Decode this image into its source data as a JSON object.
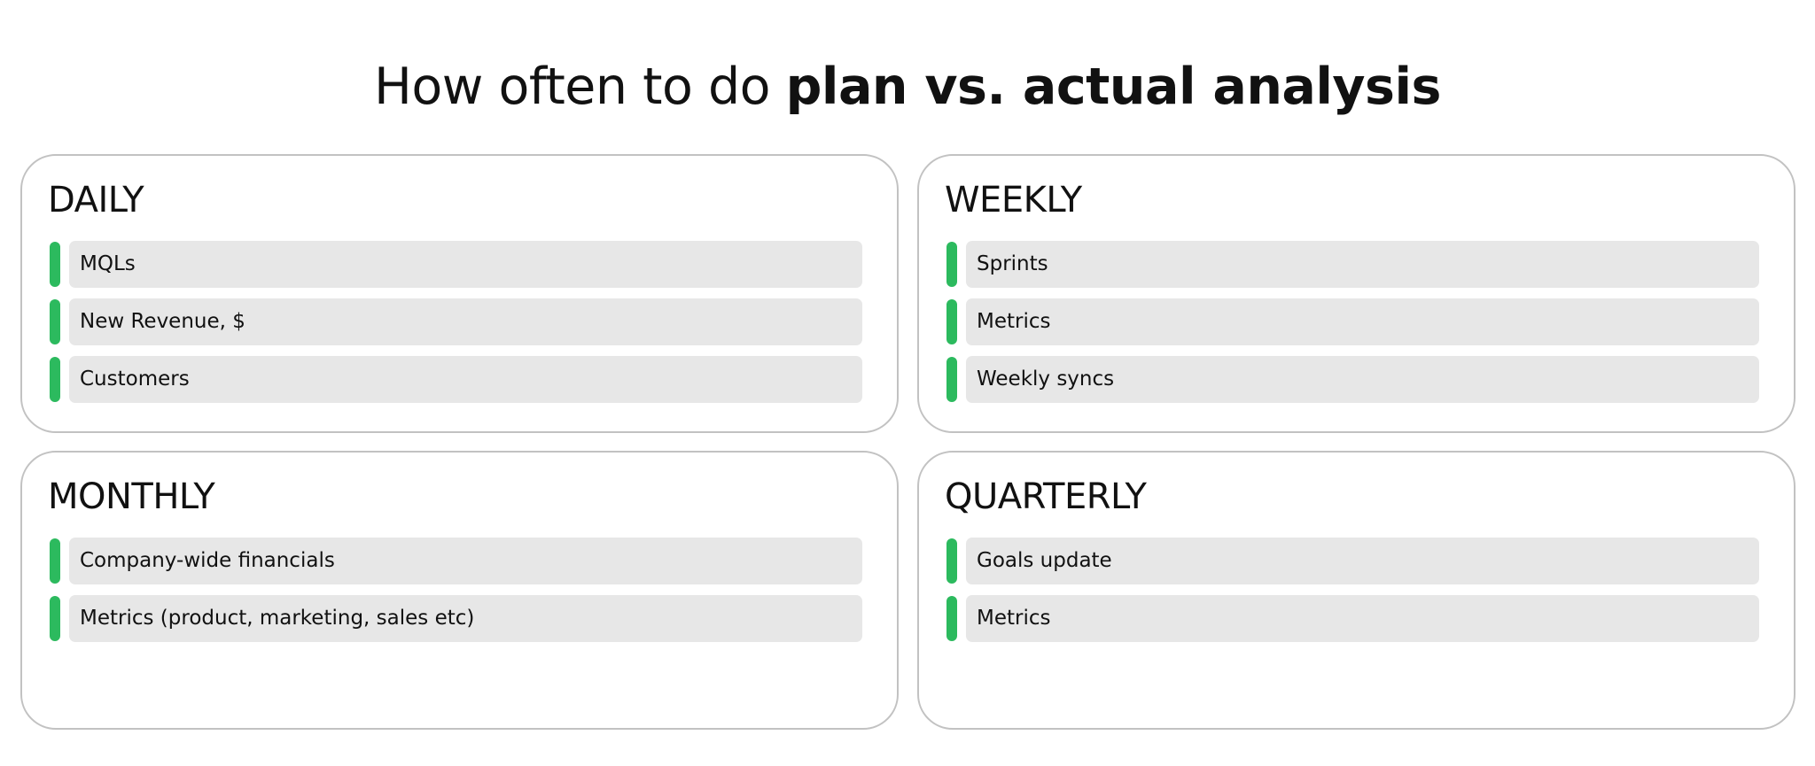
{
  "title": {
    "prefix": "How often to do ",
    "emphasis": "plan vs. actual analysis"
  },
  "colors": {
    "accent_bar": "#2cba5e",
    "item_background": "#e7e7e7",
    "card_border": "#c2c2c2"
  },
  "cards": [
    {
      "heading": "DAILY",
      "items": [
        "MQLs",
        "New Revenue, $",
        "Customers"
      ]
    },
    {
      "heading": "WEEKLY",
      "items": [
        "Sprints",
        "Metrics",
        "Weekly syncs"
      ]
    },
    {
      "heading": "MONTHLY",
      "items": [
        "Company-wide financials",
        "Metrics (product, marketing, sales etc)"
      ]
    },
    {
      "heading": "QUARTERLY",
      "items": [
        "Goals update",
        "Metrics"
      ]
    }
  ]
}
